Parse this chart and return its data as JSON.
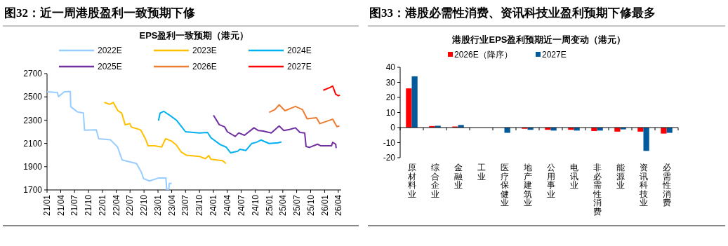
{
  "chart_data": [
    {
      "type": "line",
      "title": "图32：近一周港股盈利一致预期下修",
      "subtitle": "EPS盈利一致预期（港元）",
      "legend": "top",
      "xlim": [
        "2021-01-01",
        "2026-04-20"
      ],
      "ylim": [
        1700,
        2700
      ],
      "yticks": [
        1700,
        1900,
        2100,
        2300,
        2500,
        2700
      ],
      "xticks": [
        {
          "value": "2021-01-01",
          "label": "21/01"
        },
        {
          "value": "2021-04-01",
          "label": "21/04"
        },
        {
          "value": "2021-07-01",
          "label": "21/07"
        },
        {
          "value": "2021-10-01",
          "label": "21/10"
        },
        {
          "value": "2022-01-01",
          "label": "22/01"
        },
        {
          "value": "2022-04-01",
          "label": "22/04"
        },
        {
          "value": "2022-07-01",
          "label": "22/07"
        },
        {
          "value": "2022-10-01",
          "label": "22/10"
        },
        {
          "value": "2023-01-01",
          "label": "23/01"
        },
        {
          "value": "2023-04-01",
          "label": "23/04"
        },
        {
          "value": "2023-07-01",
          "label": "23/07"
        },
        {
          "value": "2023-10-01",
          "label": "23/10"
        },
        {
          "value": "2024-01-01",
          "label": "24/01"
        },
        {
          "value": "2024-04-01",
          "label": "24/04"
        },
        {
          "value": "2024-07-01",
          "label": "24/07"
        },
        {
          "value": "2024-10-01",
          "label": "24/10"
        },
        {
          "value": "2025-01-01",
          "label": "25/01"
        },
        {
          "value": "2025-04-01",
          "label": "25/04"
        },
        {
          "value": "2025-07-01",
          "label": "25/07"
        },
        {
          "value": "2025-10-01",
          "label": "25/10"
        },
        {
          "value": "2026-01-01",
          "label": "26/01"
        },
        {
          "value": "2026-04-01",
          "label": "26/04"
        }
      ],
      "series": [
        {
          "name": "2022E",
          "color": "#99ccff",
          "x": [
            "2021-01-01",
            "2021-03-10",
            "2021-03-17",
            "2021-04-25",
            "2021-06-03",
            "2021-06-06",
            "2021-07-19",
            "2021-08-28",
            "2021-09-05",
            "2021-11-21",
            "2021-12-07",
            "2022-02-23",
            "2022-04-10",
            "2022-05-10",
            "2022-07-10",
            "2022-08-12",
            "2022-09-12",
            "2022-09-28",
            "2022-11-06",
            "2023-01-06",
            "2023-02-22",
            "2023-02-27",
            "2023-03-13",
            "2023-03-16",
            "2023-04-01"
          ],
          "values": [
            2543,
            2537,
            2502,
            2543,
            2547,
            2416,
            2371,
            2361,
            2214,
            2216,
            2140,
            2130,
            2069,
            1958,
            1938,
            1928,
            1857,
            1797,
            1777,
            1803,
            1803,
            1706,
            1706,
            1756,
            1756
          ]
        },
        {
          "name": "2023E",
          "color": "#ffc000",
          "x": [
            "2022-01-12",
            "2022-02-18",
            "2022-03-13",
            "2022-04-12",
            "2022-05-07",
            "2022-05-30",
            "2022-06-30",
            "2022-07-10",
            "2022-08-17",
            "2022-09-10",
            "2022-10-10",
            "2022-10-28",
            "2022-12-10",
            "2023-01-25",
            "2023-02-20",
            "2023-04-01",
            "2023-05-01",
            "2023-06-01",
            "2023-07-08",
            "2023-10-01",
            "2023-11-08",
            "2023-12-01",
            "2023-12-15",
            "2024-03-01",
            "2024-03-23"
          ],
          "values": [
            2452,
            2436,
            2452,
            2381,
            2361,
            2260,
            2270,
            2240,
            2226,
            2214,
            2140,
            2079,
            2079,
            2069,
            2140,
            2119,
            2087,
            2028,
            1998,
            1988,
            1968,
            1995,
            1964,
            1952,
            1928
          ]
        },
        {
          "name": "2024E",
          "color": "#00b0f0",
          "x": [
            "2023-01-04",
            "2023-01-15",
            "2023-02-07",
            "2023-03-20",
            "2023-05-01",
            "2023-06-01",
            "2023-07-01",
            "2023-10-01",
            "2023-11-23",
            "2023-12-15",
            "2024-02-15",
            "2024-03-23",
            "2024-04-23",
            "2024-06-08",
            "2024-06-23",
            "2024-08-01",
            "2024-09-08",
            "2024-10-08",
            "2024-11-08",
            "2025-01-01",
            "2025-03-01",
            "2025-03-23"
          ],
          "values": [
            2295,
            2361,
            2376,
            2341,
            2301,
            2250,
            2200,
            2190,
            2194,
            2149,
            2089,
            2069,
            2019,
            2033,
            2049,
            2039,
            2099,
            2109,
            2129,
            2099,
            2105,
            2113
          ]
        },
        {
          "name": "2025E",
          "color": "#7030a0",
          "x": [
            "2024-01-01",
            "2024-02-08",
            "2024-03-15",
            "2024-04-01",
            "2024-05-23",
            "2024-06-15",
            "2024-07-23",
            "2024-09-23",
            "2024-10-23",
            "2024-11-23",
            "2025-01-15",
            "2025-03-08",
            "2025-04-08",
            "2025-05-15",
            "2025-06-23",
            "2025-07-23",
            "2025-08-23",
            "2025-09-01",
            "2025-09-23",
            "2025-11-15",
            "2025-12-08",
            "2026-02-15",
            "2026-02-23",
            "2026-03-15",
            "2026-03-18"
          ],
          "values": [
            2341,
            2261,
            2241,
            2200,
            2160,
            2190,
            2170,
            2234,
            2210,
            2206,
            2190,
            2250,
            2210,
            2220,
            2234,
            2194,
            2190,
            2073,
            2065,
            2093,
            2079,
            2079,
            2109,
            2093,
            2059
          ]
        },
        {
          "name": "2026E",
          "color": "#ed7d31",
          "x": [
            "2025-01-01",
            "2025-02-08",
            "2025-03-08",
            "2025-04-15",
            "2025-05-23",
            "2025-06-23",
            "2025-08-08",
            "2025-09-08",
            "2025-11-08",
            "2025-12-01",
            "2026-02-23",
            "2026-03-23",
            "2026-04-08"
          ],
          "values": [
            2367,
            2391,
            2432,
            2381,
            2401,
            2418,
            2391,
            2311,
            2321,
            2270,
            2308,
            2244,
            2250
          ]
        },
        {
          "name": "2027E",
          "color": "#ff0000",
          "x": [
            "2025-12-23",
            "2026-01-31",
            "2026-02-23",
            "2026-03-15",
            "2026-04-01",
            "2026-04-12"
          ],
          "values": [
            2557,
            2577,
            2593,
            2523,
            2510,
            2514
          ]
        }
      ]
    },
    {
      "type": "bar",
      "title": "图33：港股必需性消费、资讯科技业盈利预期下修最多",
      "subtitle": "港股行业EPS盈利预期近一周变动（港元）",
      "legend": "top",
      "ylim": [
        -20,
        40
      ],
      "yticks": [
        -20,
        -10,
        0,
        10,
        20,
        30,
        40
      ],
      "categories": [
        "原材料业",
        "综合企业",
        "金融业",
        "工业",
        "医疗保健业",
        "地产建筑业",
        "公用事业",
        "电讯业",
        "非必需性消费",
        "能源业",
        "资讯科技业",
        "必需性消费"
      ],
      "series": [
        {
          "name": "2026E（降序）",
          "color": "#ff0000",
          "values": [
            26,
            1,
            0.7,
            null,
            null,
            -0.8,
            -1.5,
            -1.5,
            -2.3,
            -2.7,
            -2.7,
            -4
          ]
        },
        {
          "name": "2027E",
          "color": "#005a9c",
          "values": [
            34,
            1.2,
            1.7,
            null,
            -3.5,
            -1.5,
            -2,
            -2,
            -2,
            -1.2,
            -15.5,
            -3.5
          ]
        }
      ]
    }
  ]
}
